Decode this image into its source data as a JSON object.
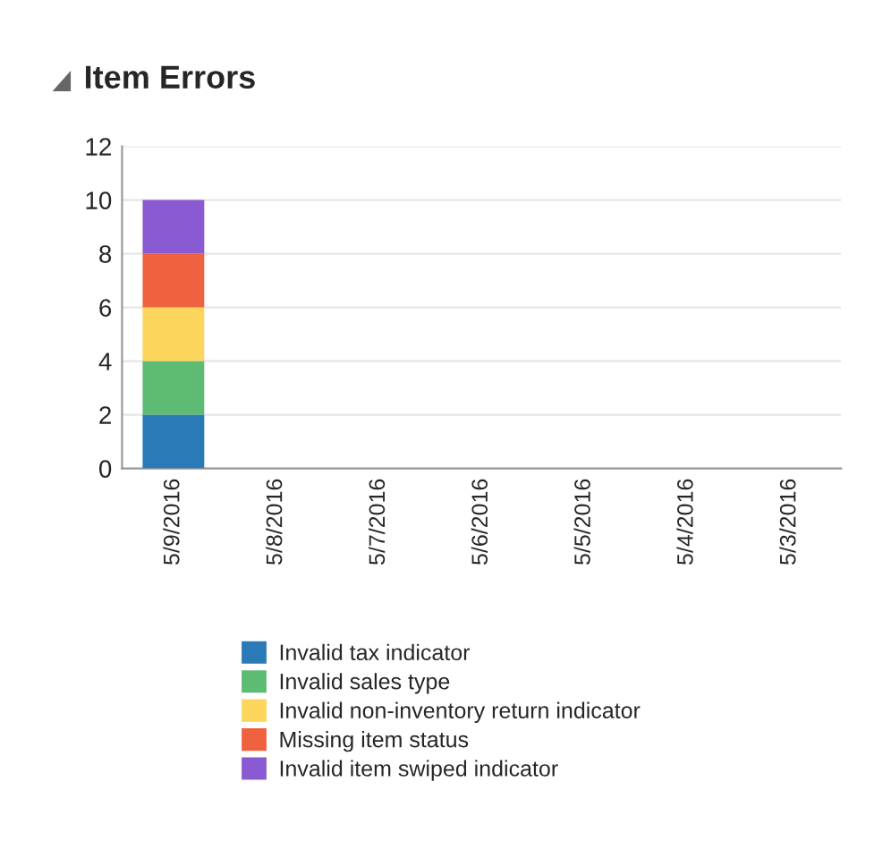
{
  "chart_data": {
    "type": "bar",
    "title": "Item Errors",
    "stacked": true,
    "categories": [
      "5/9/2016",
      "5/8/2016",
      "5/7/2016",
      "5/6/2016",
      "5/5/2016",
      "5/4/2016",
      "5/3/2016"
    ],
    "series": [
      {
        "name": "Invalid tax indicator",
        "color": "#2a7ab8",
        "values": [
          2,
          0,
          0,
          0,
          0,
          0,
          0
        ]
      },
      {
        "name": "Invalid sales type",
        "color": "#5dbb74",
        "values": [
          2,
          0,
          0,
          0,
          0,
          0,
          0
        ]
      },
      {
        "name": "Invalid non-inventory return indicator",
        "color": "#fcd55c",
        "values": [
          2,
          0,
          0,
          0,
          0,
          0,
          0
        ]
      },
      {
        "name": "Missing item status",
        "color": "#f0613f",
        "values": [
          2,
          0,
          0,
          0,
          0,
          0,
          0
        ]
      },
      {
        "name": "Invalid item swiped indicator",
        "color": "#8a5ad3",
        "values": [
          2,
          0,
          0,
          0,
          0,
          0,
          0
        ]
      }
    ],
    "ylim": [
      0,
      12
    ],
    "yticks": [
      0,
      2,
      4,
      6,
      8,
      10,
      12
    ],
    "grid": "y",
    "legend": "bottom"
  }
}
